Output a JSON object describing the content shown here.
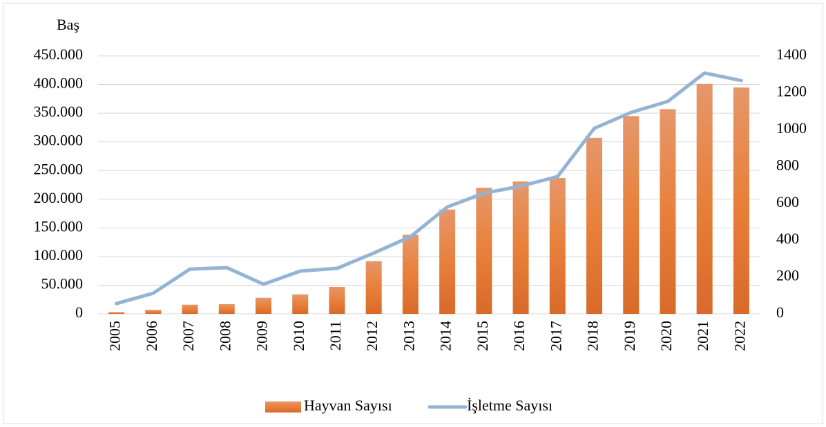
{
  "chart_data": {
    "type": "bar-line",
    "ylabel": "Baş",
    "categories": [
      "2005",
      "2006",
      "2007",
      "2008",
      "2009",
      "2010",
      "2011",
      "2012",
      "2013",
      "2014",
      "2015",
      "2016",
      "2017",
      "2018",
      "2019",
      "2020",
      "2021",
      "2022"
    ],
    "series": [
      {
        "name": "Hayvan Sayısı",
        "type": "bar",
        "color": "#e8803a",
        "axis": "y",
        "values": [
          3000,
          7000,
          16000,
          17000,
          28000,
          34000,
          47000,
          92000,
          138000,
          182000,
          220000,
          231000,
          237000,
          307000,
          345000,
          357000,
          401000,
          395000
        ]
      },
      {
        "name": "İşletme Sayısı",
        "type": "line",
        "color": "#94b4d4",
        "axis": "y2",
        "values": [
          56,
          112,
          243,
          251,
          161,
          232,
          247,
          330,
          419,
          580,
          655,
          693,
          745,
          1007,
          1093,
          1153,
          1307,
          1266
        ]
      }
    ],
    "ylim": [
      0,
      450000
    ],
    "yticks": [
      0,
      {
        "value": 50000,
        "label": "50.000"
      },
      {
        "value": 100000,
        "label": "100.000"
      },
      {
        "value": 150000,
        "label": "150.000"
      },
      {
        "value": 200000,
        "label": "200.000"
      },
      {
        "value": 250000,
        "label": "250.000"
      },
      {
        "value": 300000,
        "label": "300.000"
      },
      {
        "value": 350000,
        "label": "350.000"
      },
      {
        "value": 400000,
        "label": "400.000"
      },
      {
        "value": 450000,
        "label": "450.000"
      }
    ],
    "y2lim": [
      0,
      1400
    ],
    "y2ticks": [
      0,
      200,
      400,
      600,
      800,
      1000,
      1200,
      1400
    ],
    "grid": true,
    "legend": "bottom"
  }
}
